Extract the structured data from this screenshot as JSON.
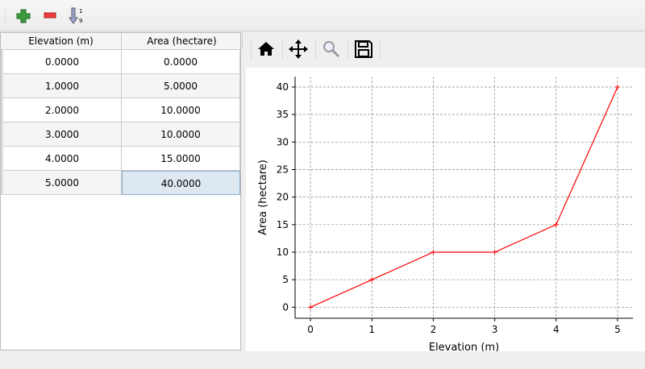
{
  "toolbar": {
    "icons": [
      "add-row-icon",
      "remove-row-icon",
      "sort-ascending-icon"
    ]
  },
  "table": {
    "columns": [
      "Elevation (m)",
      "Area (hectare)"
    ],
    "rows": [
      [
        "0.0000",
        "0.0000"
      ],
      [
        "1.0000",
        "5.0000"
      ],
      [
        "2.0000",
        "10.0000"
      ],
      [
        "3.0000",
        "10.0000"
      ],
      [
        "4.0000",
        "15.0000"
      ],
      [
        "5.0000",
        "40.0000"
      ]
    ],
    "selected_cell": {
      "row": 5,
      "column": 1
    }
  },
  "plot_toolbar": {
    "icons": [
      "home-icon",
      "pan-icon",
      "zoom-icon",
      "save-icon"
    ]
  },
  "chart_data": {
    "type": "line",
    "x": [
      0,
      1,
      2,
      3,
      4,
      5
    ],
    "y": [
      0,
      5,
      10,
      10,
      15,
      40
    ],
    "xlabel": "Elevation (m)",
    "ylabel": "Area (hectare)",
    "xlim": [
      -0.25,
      5.25
    ],
    "ylim": [
      -2,
      41.9
    ],
    "xticks": [
      0,
      1,
      2,
      3,
      4,
      5
    ],
    "yticks": [
      0,
      5,
      10,
      15,
      20,
      25,
      30,
      35,
      40
    ],
    "grid": true,
    "line_color": "#ff0000",
    "marker": "+"
  }
}
